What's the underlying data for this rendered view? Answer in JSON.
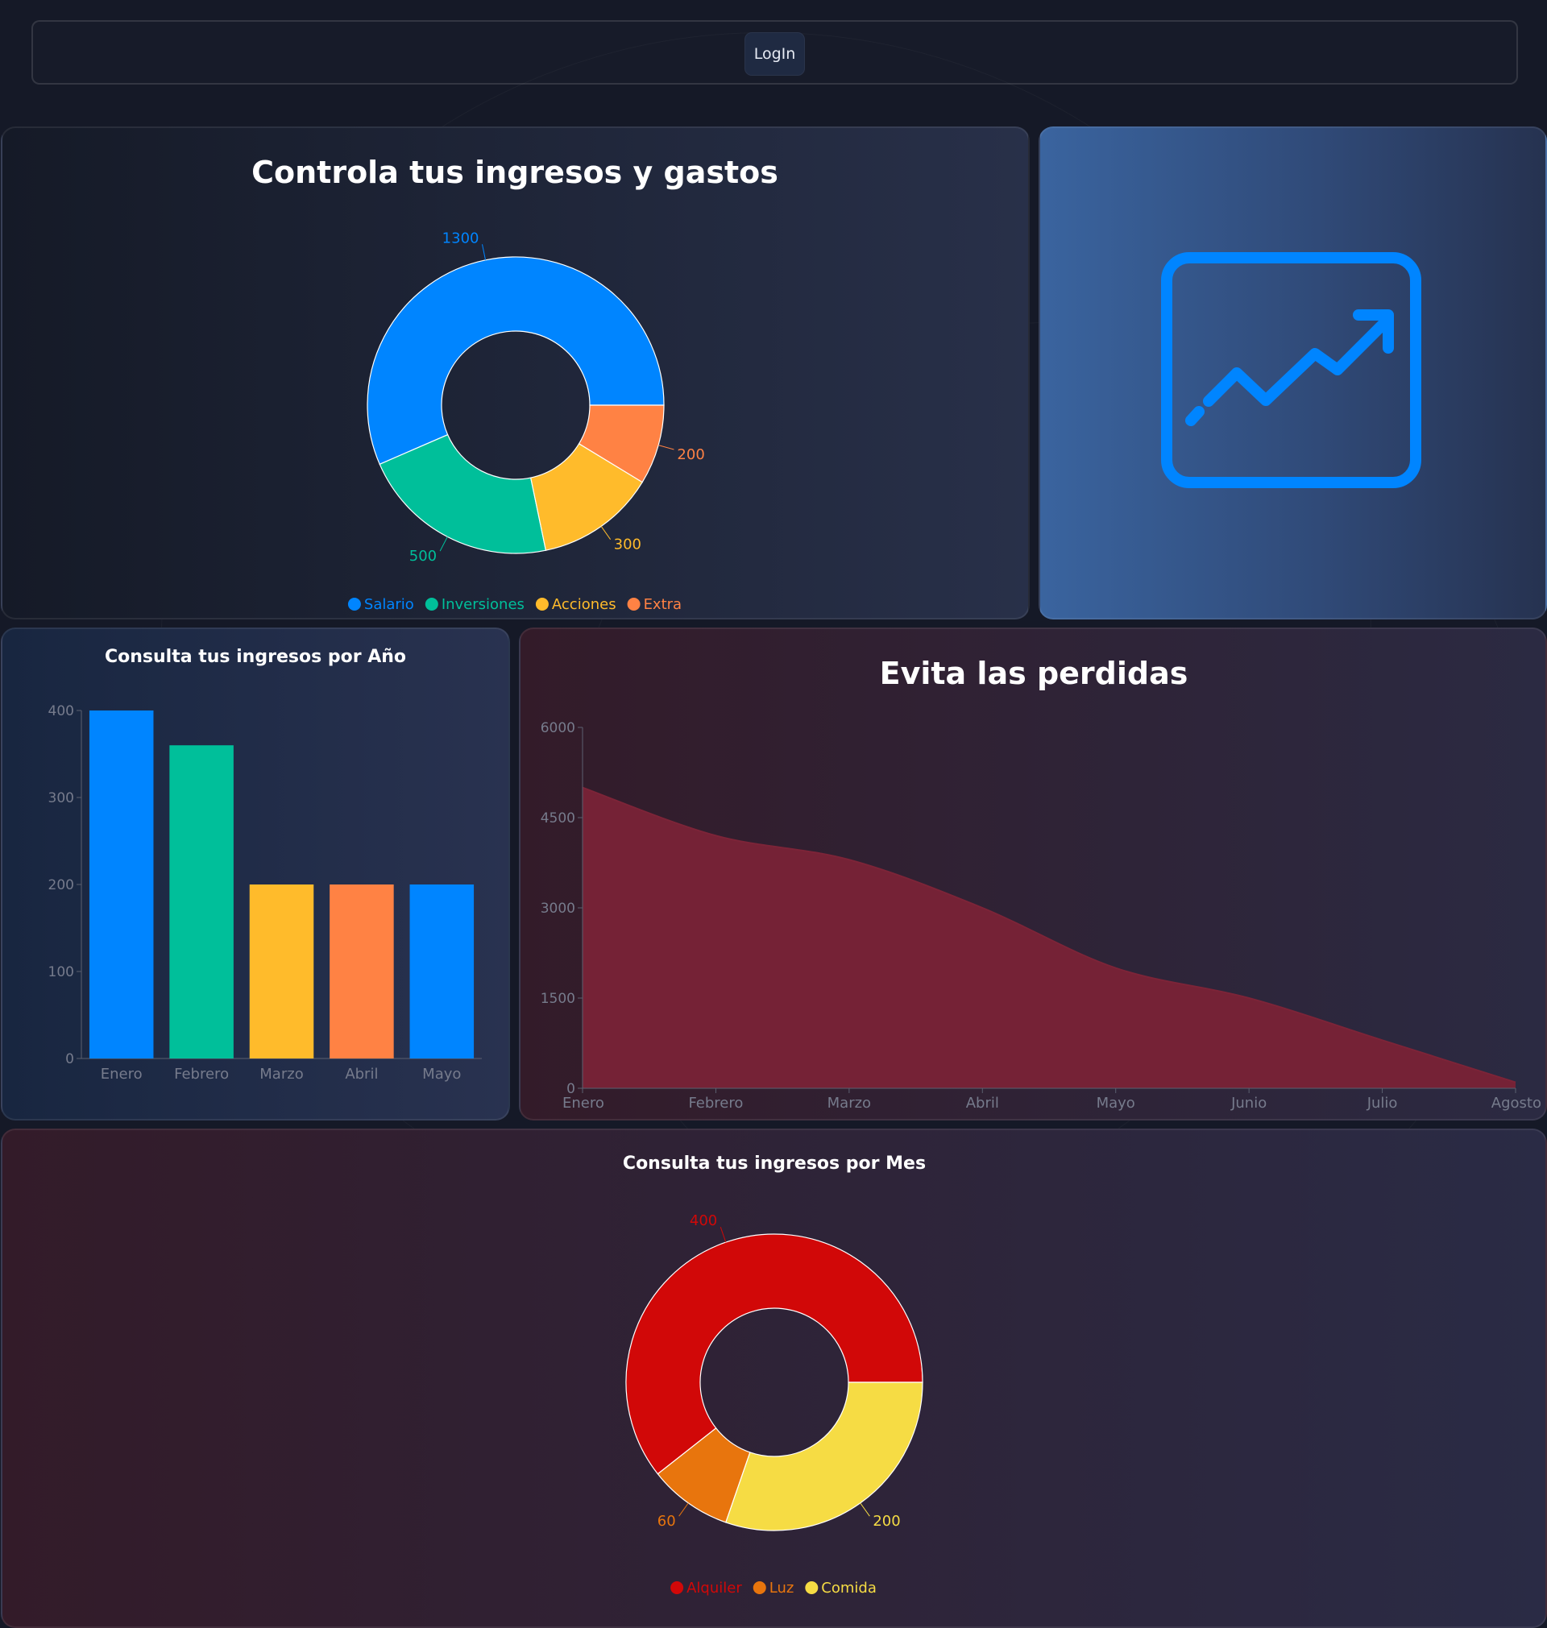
{
  "header": {
    "login_label": "LogIn"
  },
  "icon_panel": {
    "icon": "chart-line-icon",
    "color": "#0085ff"
  },
  "colors": {
    "salario": "#0085ff",
    "inversiones": "#00bf9a",
    "acciones": "#ffbb2b",
    "extra": "#ff8244",
    "loss_area": "#752236",
    "alquiler": "#d10808",
    "luz": "#e8750d",
    "comida": "#f6dc44",
    "axis_text": "#767b8c",
    "axis_line": "#5b6070"
  },
  "chart_data": [
    {
      "id": "income",
      "type": "pie",
      "title": "Controla tus ingresos y gastos",
      "labels": [
        "Salario",
        "Inversiones",
        "Acciones",
        "Extra"
      ],
      "values": [
        1300,
        500,
        300,
        200
      ],
      "legend": "bottom"
    },
    {
      "id": "year",
      "type": "bar",
      "title": "Consulta tus ingresos por Año",
      "categories": [
        "Enero",
        "Febrero",
        "Marzo",
        "Abril",
        "Mayo"
      ],
      "values": [
        400,
        360,
        200,
        200,
        200
      ],
      "ylim": [
        0,
        400
      ],
      "yticks": [
        0,
        100,
        200,
        300,
        400
      ]
    },
    {
      "id": "loss",
      "type": "area",
      "title": "Evita las perdidas",
      "categories": [
        "Enero",
        "Febrero",
        "Marzo",
        "Abril",
        "Mayo",
        "Junio",
        "Julio",
        "Agosto"
      ],
      "values": [
        5000,
        4200,
        3800,
        3000,
        2000,
        1500,
        800,
        100
      ],
      "ylim": [
        0,
        6000
      ],
      "yticks": [
        0,
        1500,
        3000,
        4500,
        6000
      ]
    },
    {
      "id": "month",
      "type": "pie",
      "title": "Consulta tus ingresos por Mes",
      "labels": [
        "Alquiler",
        "Luz",
        "Comida"
      ],
      "values": [
        400,
        60,
        200
      ],
      "legend": "bottom"
    }
  ]
}
